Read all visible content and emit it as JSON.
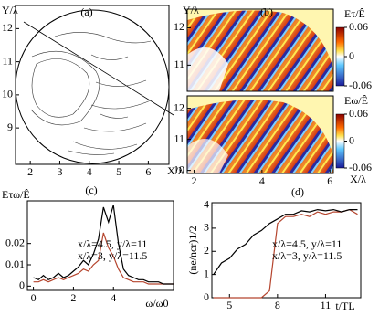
{
  "chart_data": [
    {
      "type": "contour",
      "label": "(a)",
      "x_label": "X/λ",
      "y_label": "Y/λ",
      "xlim": [
        1.5,
        6.7
      ],
      "ylim": [
        7.9,
        12.7
      ],
      "xticks": [
        2,
        3,
        4,
        5,
        6
      ],
      "yticks": [
        9,
        10,
        11,
        12
      ]
    },
    {
      "type": "heatmap",
      "label": "(b)",
      "x_label": "X/λ",
      "y_label": "Y/λ",
      "xlim": [
        1.8,
        6.1
      ],
      "xticks": [
        2,
        4,
        6
      ],
      "panels": [
        {
          "colorbar_label": "Eτ/Ê",
          "ylim": [
            10.3,
            12.5
          ],
          "yticks": [
            11,
            12
          ],
          "clim": [
            -0.06,
            0.06
          ],
          "cticks": [
            0.06,
            0,
            -0.06
          ]
        },
        {
          "colorbar_label": "Eω/Ê",
          "ylim": [
            9.9,
            12.4
          ],
          "yticks": [
            10,
            11,
            12
          ],
          "clim": [
            -0.06,
            0.06
          ],
          "cticks": [
            0.06,
            0,
            -0.06
          ]
        }
      ]
    },
    {
      "type": "line",
      "label": "(c)",
      "x_label": "ω/ω0",
      "y_label": "Eτω/Ê",
      "xlim": [
        -0.3,
        7
      ],
      "ylim": [
        -0.002,
        0.04
      ],
      "xticks": [
        0,
        2,
        4
      ],
      "yticks": [
        0,
        0.01,
        0.02
      ],
      "x": [
        0,
        0.25,
        0.5,
        0.75,
        1,
        1.25,
        1.5,
        1.75,
        2,
        2.25,
        2.5,
        2.75,
        3,
        3.25,
        3.5,
        3.75,
        4,
        4.25,
        4.5,
        4.75,
        5,
        5.25,
        5.5,
        5.75,
        6,
        6.25,
        6.5,
        6.75,
        7
      ],
      "series": [
        {
          "name": "x/λ=4.5, y/λ=11",
          "color": "#b5452e",
          "values": [
            0.002,
            0.002,
            0.003,
            0.002,
            0.003,
            0.004,
            0.003,
            0.004,
            0.005,
            0.006,
            0.008,
            0.007,
            0.01,
            0.012,
            0.025,
            0.018,
            0.014,
            0.008,
            0.004,
            0.003,
            0.002,
            0.002,
            0.002,
            0.001,
            0.001,
            0.001,
            0.001,
            0.001,
            0.001
          ]
        },
        {
          "name": "x/λ=3, y/λ=11.5",
          "color": "#000000",
          "values": [
            0.004,
            0.003,
            0.005,
            0.003,
            0.004,
            0.006,
            0.004,
            0.005,
            0.007,
            0.009,
            0.012,
            0.01,
            0.015,
            0.022,
            0.037,
            0.03,
            0.038,
            0.02,
            0.008,
            0.005,
            0.004,
            0.003,
            0.003,
            0.002,
            0.002,
            0.002,
            0.001,
            0.001,
            0.001
          ]
        }
      ]
    },
    {
      "type": "line",
      "label": "(d)",
      "x_label": "t/TL",
      "y_label": "(ne/ncr)1/2",
      "xlim": [
        3.9,
        13.2
      ],
      "ylim": [
        0,
        4.1
      ],
      "xticks": [
        5,
        8,
        11
      ],
      "yticks": [
        0,
        1,
        2,
        3,
        4
      ],
      "x": [
        4,
        4.5,
        5,
        5.5,
        6,
        6.5,
        7,
        7.5,
        8,
        8.5,
        9,
        9.5,
        10,
        10.5,
        11,
        11.5,
        12,
        12.5,
        13
      ],
      "series": [
        {
          "name": "x/λ=4.5, y/λ=11",
          "color": "#b5452e",
          "values": [
            0,
            0,
            0,
            0,
            0,
            0,
            0,
            0.3,
            3.2,
            3.5,
            3.5,
            3.6,
            3.5,
            3.7,
            3.6,
            3.7,
            3.7,
            3.8,
            3.6
          ]
        },
        {
          "name": "x/λ=3, y/λ=11.5",
          "color": "#000000",
          "values": [
            1.0,
            1.5,
            1.7,
            2.1,
            2.3,
            2.7,
            2.9,
            3.2,
            3.4,
            3.6,
            3.6,
            3.75,
            3.7,
            3.8,
            3.75,
            3.8,
            3.7,
            3.8,
            3.8
          ]
        }
      ]
    }
  ]
}
